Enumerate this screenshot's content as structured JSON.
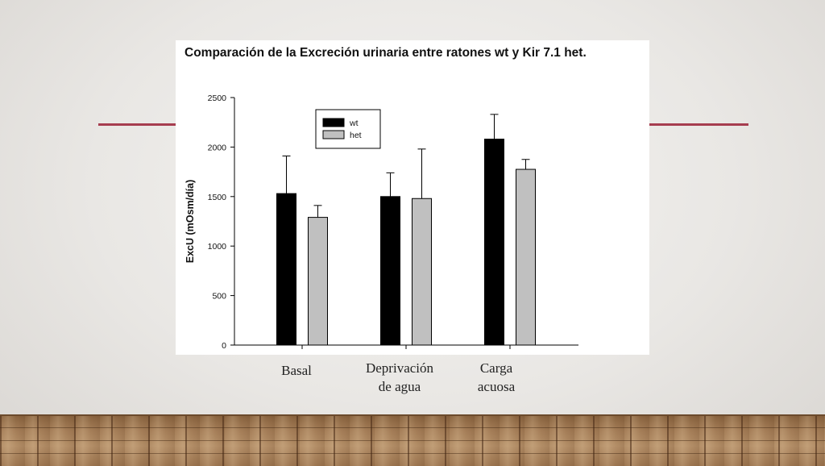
{
  "slide": {
    "accent_color": "#a63d4f",
    "category_labels": [
      "Basal",
      "Deprivación\nde agua",
      "Carga\nacuosa"
    ]
  },
  "chart_data": {
    "type": "bar",
    "title": "Comparación de la Excreción urinaria entre ratones wt y Kir 7.1 het.",
    "xlabel": "",
    "ylabel": "ExcU (mOsm/día)",
    "ylim": [
      0,
      2500
    ],
    "yticks": [
      0,
      500,
      1000,
      1500,
      2000,
      2500
    ],
    "categories": [
      "Basal",
      "Deprivación de agua",
      "Carga acuosa"
    ],
    "series": [
      {
        "name": "wt",
        "color": "#000000",
        "values": [
          1530,
          1500,
          2080
        ],
        "error": [
          380,
          240,
          250
        ]
      },
      {
        "name": "het",
        "color": "#c0c0c0",
        "values": [
          1290,
          1480,
          1775
        ],
        "error": [
          120,
          500,
          100
        ]
      }
    ],
    "legend": "top-left",
    "grid": false
  }
}
